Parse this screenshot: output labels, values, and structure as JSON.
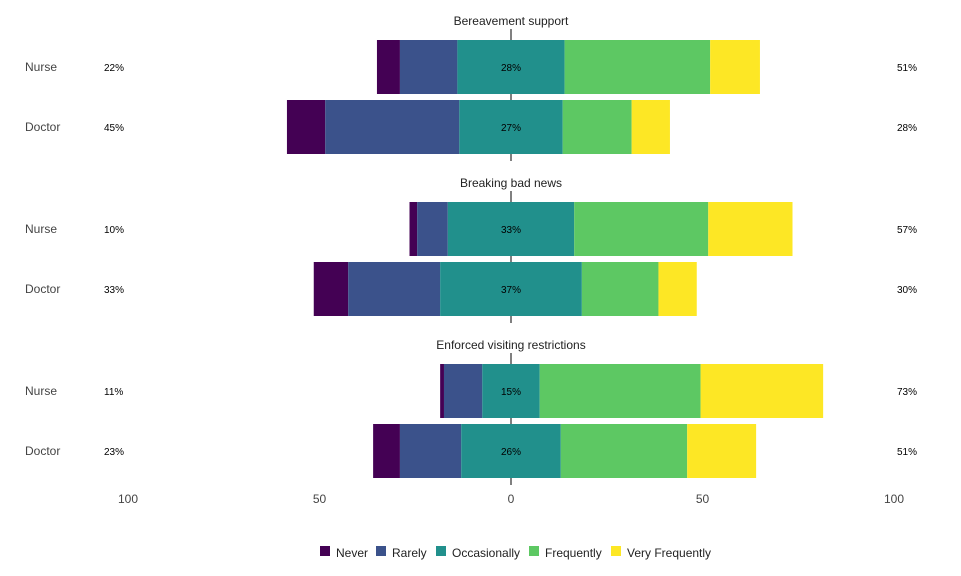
{
  "chart_data": {
    "type": "bar",
    "orientation": "horizontal-diverging",
    "xlim": [
      -100,
      100
    ],
    "x_ticks": [
      -100,
      -50,
      0,
      50,
      100
    ],
    "x_tick_labels": [
      "100",
      "50",
      "0",
      "50",
      "100"
    ],
    "colors": {
      "Never": "#440154",
      "Rarely": "#3b528b",
      "Occasionally": "#21908c",
      "Frequently": "#5dc863",
      "Very Frequently": "#fde725"
    },
    "legend": {
      "position": "bottom",
      "items": [
        "Never",
        "Rarely",
        "Occasionally",
        "Frequently",
        "Very Frequently"
      ]
    },
    "panels": [
      {
        "title": "Bereavement support",
        "rows": [
          {
            "label": "Nurse",
            "left_pct": "22%",
            "center_pct": "28%",
            "right_pct": "51%",
            "values": {
              "Never": 6,
              "Rarely": 15,
              "Occasionally": 28,
              "Frequently": 38,
              "Very Frequently": 13
            }
          },
          {
            "label": "Doctor",
            "left_pct": "45%",
            "center_pct": "27%",
            "right_pct": "28%",
            "values": {
              "Never": 10,
              "Rarely": 35,
              "Occasionally": 27,
              "Frequently": 18,
              "Very Frequently": 10
            }
          }
        ]
      },
      {
        "title": "Breaking bad news",
        "rows": [
          {
            "label": "Nurse",
            "left_pct": "10%",
            "center_pct": "33%",
            "right_pct": "57%",
            "values": {
              "Never": 2,
              "Rarely": 8,
              "Occasionally": 33,
              "Frequently": 35,
              "Very Frequently": 22
            }
          },
          {
            "label": "Doctor",
            "left_pct": "33%",
            "center_pct": "37%",
            "right_pct": "30%",
            "values": {
              "Never": 9,
              "Rarely": 24,
              "Occasionally": 37,
              "Frequently": 20,
              "Very Frequently": 10
            }
          }
        ]
      },
      {
        "title": "Enforced visiting restrictions",
        "rows": [
          {
            "label": "Nurse",
            "left_pct": "11%",
            "center_pct": "15%",
            "right_pct": "73%",
            "values": {
              "Never": 1,
              "Rarely": 10,
              "Occasionally": 15,
              "Frequently": 42,
              "Very Frequently": 32
            }
          },
          {
            "label": "Doctor",
            "left_pct": "23%",
            "center_pct": "26%",
            "right_pct": "51%",
            "values": {
              "Never": 7,
              "Rarely": 16,
              "Occasionally": 26,
              "Frequently": 33,
              "Very Frequently": 18
            }
          }
        ]
      }
    ]
  }
}
